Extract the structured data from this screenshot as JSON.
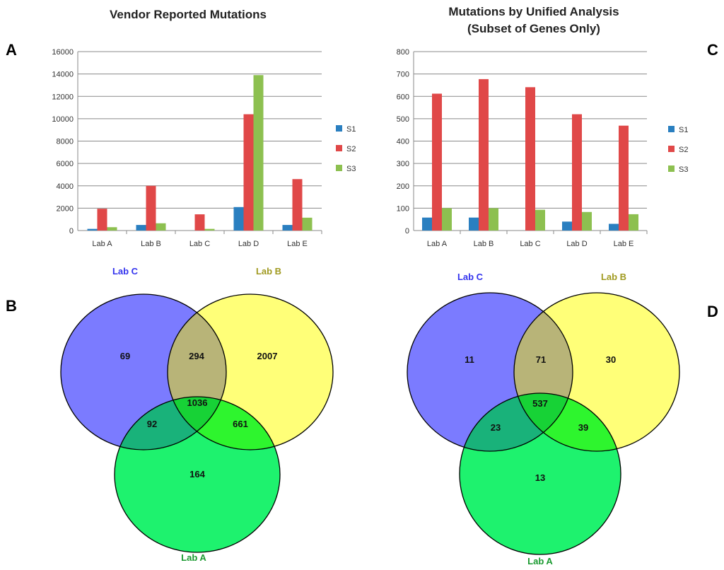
{
  "panel_letters": {
    "a": "A",
    "b": "B",
    "c": "C",
    "d": "D"
  },
  "colors": {
    "s1": "#2a7fc0",
    "s2": "#e04848",
    "s3": "#8dc050",
    "lab_c": "#7b7bff",
    "lab_b": "#ffff78",
    "lab_a": "#1ef26e",
    "lab_c_text": "#3333ee",
    "lab_b_text": "#a09a20",
    "lab_a_text": "#1a9a30"
  },
  "chart_data": [
    {
      "type": "bar",
      "title": "Vendor Reported Mutations",
      "categories": [
        "Lab A",
        "Lab B",
        "Lab C",
        "Lab D",
        "Lab E"
      ],
      "yticks": [
        "0",
        "2000",
        "4000",
        "6000",
        "8000",
        "10000",
        "12000",
        "14000",
        "16000"
      ],
      "ylim": [
        0,
        16000
      ],
      "legend": [
        "S1",
        "S2",
        "S3"
      ],
      "series": [
        {
          "name": "S1",
          "values": [
            150,
            500,
            0,
            2100,
            500
          ]
        },
        {
          "name": "S2",
          "values": [
            1950,
            4000,
            1450,
            10400,
            4600
          ]
        },
        {
          "name": "S3",
          "values": [
            300,
            650,
            150,
            13900,
            1150
          ]
        }
      ]
    },
    {
      "type": "bar",
      "title": "Mutations by Unified Analysis",
      "subtitle": "(Subset of Genes Only)",
      "categories": [
        "Lab A",
        "Lab B",
        "Lab C",
        "Lab D",
        "Lab E"
      ],
      "yticks": [
        "0",
        "100",
        "200",
        "300",
        "400",
        "500",
        "600",
        "700",
        "800"
      ],
      "ylim": [
        0,
        800
      ],
      "legend": [
        "S1",
        "S2",
        "S3"
      ],
      "series": [
        {
          "name": "S1",
          "values": [
            58,
            58,
            0,
            40,
            30
          ]
        },
        {
          "name": "S2",
          "values": [
            612,
            677,
            641,
            520,
            469
          ]
        },
        {
          "name": "S3",
          "values": [
            100,
            100,
            93,
            83,
            73
          ]
        }
      ]
    }
  ],
  "venn_b": {
    "label_c": "Lab C",
    "label_b": "Lab B",
    "label_a": "Lab A",
    "only_c": "69",
    "c_b": "294",
    "only_b": "2007",
    "c_a": "92",
    "all": "1036",
    "b_a": "661",
    "only_a": "164"
  },
  "venn_d": {
    "label_c": "Lab C",
    "label_b": "Lab B",
    "label_a": "Lab A",
    "only_c": "11",
    "c_b": "71",
    "only_b": "30",
    "c_a": "23",
    "all": "537",
    "b_a": "39",
    "only_a": "13"
  }
}
